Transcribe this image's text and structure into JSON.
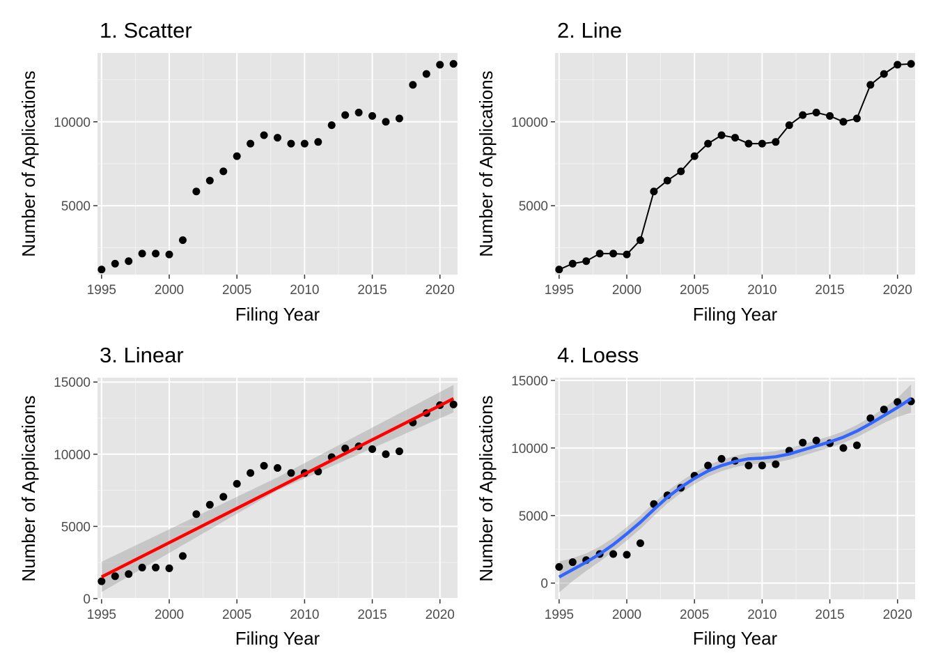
{
  "chart_data": [
    {
      "type": "scatter",
      "title": "1. Scatter",
      "xlabel": "Filing Year",
      "ylabel": "Number of Applications",
      "xlim": [
        1994.7,
        2021.3
      ],
      "ylim": [
        900,
        14100
      ],
      "x_ticks": [
        1995,
        2000,
        2005,
        2010,
        2015,
        2020
      ],
      "y_ticks": [
        5000,
        10000
      ],
      "grid": true,
      "point_color": "#000000",
      "x": [
        1995,
        1996,
        1997,
        1998,
        1999,
        2000,
        2001,
        2002,
        2003,
        2004,
        2005,
        2006,
        2007,
        2008,
        2009,
        2010,
        2011,
        2012,
        2013,
        2014,
        2015,
        2016,
        2017,
        2018,
        2019,
        2020,
        2021
      ],
      "y": [
        1200,
        1550,
        1700,
        2150,
        2150,
        2100,
        2950,
        5850,
        6500,
        7050,
        7950,
        8700,
        9200,
        9050,
        8700,
        8700,
        8800,
        9800,
        10400,
        10550,
        10350,
        10000,
        10200,
        12200,
        12850,
        13400,
        13450
      ]
    },
    {
      "type": "line",
      "title": "2. Line",
      "xlabel": "Filing Year",
      "ylabel": "Number of Applications",
      "xlim": [
        1994.7,
        2021.3
      ],
      "ylim": [
        900,
        14100
      ],
      "x_ticks": [
        1995,
        2000,
        2005,
        2010,
        2015,
        2020
      ],
      "y_ticks": [
        5000,
        10000
      ],
      "grid": true,
      "line_color": "#000000",
      "x": [
        1995,
        1996,
        1997,
        1998,
        1999,
        2000,
        2001,
        2002,
        2003,
        2004,
        2005,
        2006,
        2007,
        2008,
        2009,
        2010,
        2011,
        2012,
        2013,
        2014,
        2015,
        2016,
        2017,
        2018,
        2019,
        2020,
        2021
      ],
      "y": [
        1200,
        1550,
        1700,
        2150,
        2150,
        2100,
        2950,
        5850,
        6500,
        7050,
        7950,
        8700,
        9200,
        9050,
        8700,
        8700,
        8800,
        9800,
        10400,
        10550,
        10350,
        10000,
        10200,
        12200,
        12850,
        13400,
        13450
      ]
    },
    {
      "type": "scatter",
      "title": "3. Linear",
      "xlabel": "Filing Year",
      "ylabel": "Number of Applications",
      "xlim": [
        1994.7,
        2021.3
      ],
      "ylim": [
        -50,
        15300
      ],
      "x_ticks": [
        1995,
        2000,
        2005,
        2010,
        2015,
        2020
      ],
      "y_ticks": [
        0,
        5000,
        10000,
        15000
      ],
      "grid": true,
      "fit": "linear",
      "fit_color": "#ff0000",
      "band_color": "#999999",
      "x": [
        1995,
        1996,
        1997,
        1998,
        1999,
        2000,
        2001,
        2002,
        2003,
        2004,
        2005,
        2006,
        2007,
        2008,
        2009,
        2010,
        2011,
        2012,
        2013,
        2014,
        2015,
        2016,
        2017,
        2018,
        2019,
        2020,
        2021
      ],
      "y": [
        1200,
        1550,
        1700,
        2150,
        2150,
        2100,
        2950,
        5850,
        6500,
        7050,
        7950,
        8700,
        9200,
        9050,
        8700,
        8700,
        8800,
        9800,
        10400,
        10550,
        10350,
        10000,
        10200,
        12200,
        12850,
        13400,
        13450
      ],
      "fit_line": [
        [
          1995,
          1500
        ],
        [
          2021,
          13850
        ]
      ],
      "band_upper": [
        [
          1995,
          2550
        ],
        [
          2008,
          8400
        ],
        [
          2021,
          14800
        ]
      ],
      "band_lower": [
        [
          1995,
          450
        ],
        [
          2008,
          7500
        ],
        [
          2021,
          12900
        ]
      ]
    },
    {
      "type": "scatter",
      "title": "4. Loess",
      "xlabel": "Filing Year",
      "ylabel": "Number of Applications",
      "xlim": [
        1994.7,
        2021.3
      ],
      "ylim": [
        -1200,
        15200
      ],
      "x_ticks": [
        1995,
        2000,
        2005,
        2010,
        2015,
        2020
      ],
      "y_ticks": [
        0,
        5000,
        10000,
        15000
      ],
      "grid": true,
      "fit": "loess",
      "fit_color": "#3366ff",
      "band_color": "#999999",
      "x": [
        1995,
        1996,
        1997,
        1998,
        1999,
        2000,
        2001,
        2002,
        2003,
        2004,
        2005,
        2006,
        2007,
        2008,
        2009,
        2010,
        2011,
        2012,
        2013,
        2014,
        2015,
        2016,
        2017,
        2018,
        2019,
        2020,
        2021
      ],
      "y": [
        1200,
        1550,
        1700,
        2150,
        2150,
        2100,
        2950,
        5850,
        6500,
        7050,
        7950,
        8700,
        9200,
        9050,
        8700,
        8700,
        8800,
        9800,
        10400,
        10550,
        10350,
        10000,
        10200,
        12200,
        12850,
        13400,
        13450
      ],
      "fit_line": [
        [
          1995,
          450
        ],
        [
          1996,
          1000
        ],
        [
          1997,
          1550
        ],
        [
          1998,
          2150
        ],
        [
          1999,
          2850
        ],
        [
          2000,
          3650
        ],
        [
          2001,
          4500
        ],
        [
          2002,
          5450
        ],
        [
          2003,
          6350
        ],
        [
          2004,
          7100
        ],
        [
          2005,
          7750
        ],
        [
          2006,
          8300
        ],
        [
          2007,
          8700
        ],
        [
          2008,
          9000
        ],
        [
          2009,
          9200
        ],
        [
          2010,
          9250
        ],
        [
          2011,
          9350
        ],
        [
          2012,
          9550
        ],
        [
          2013,
          9850
        ],
        [
          2014,
          10150
        ],
        [
          2015,
          10450
        ],
        [
          2016,
          10800
        ],
        [
          2017,
          11250
        ],
        [
          2018,
          11800
        ],
        [
          2019,
          12400
        ],
        [
          2020,
          13000
        ],
        [
          2021,
          13650
        ]
      ],
      "band_halfwidth": [
        1150,
        850,
        650,
        550,
        500,
        500,
        500,
        480,
        450,
        430,
        430,
        420,
        420,
        420,
        420,
        420,
        420,
        420,
        420,
        420,
        420,
        430,
        450,
        480,
        550,
        700,
        1050
      ]
    }
  ]
}
